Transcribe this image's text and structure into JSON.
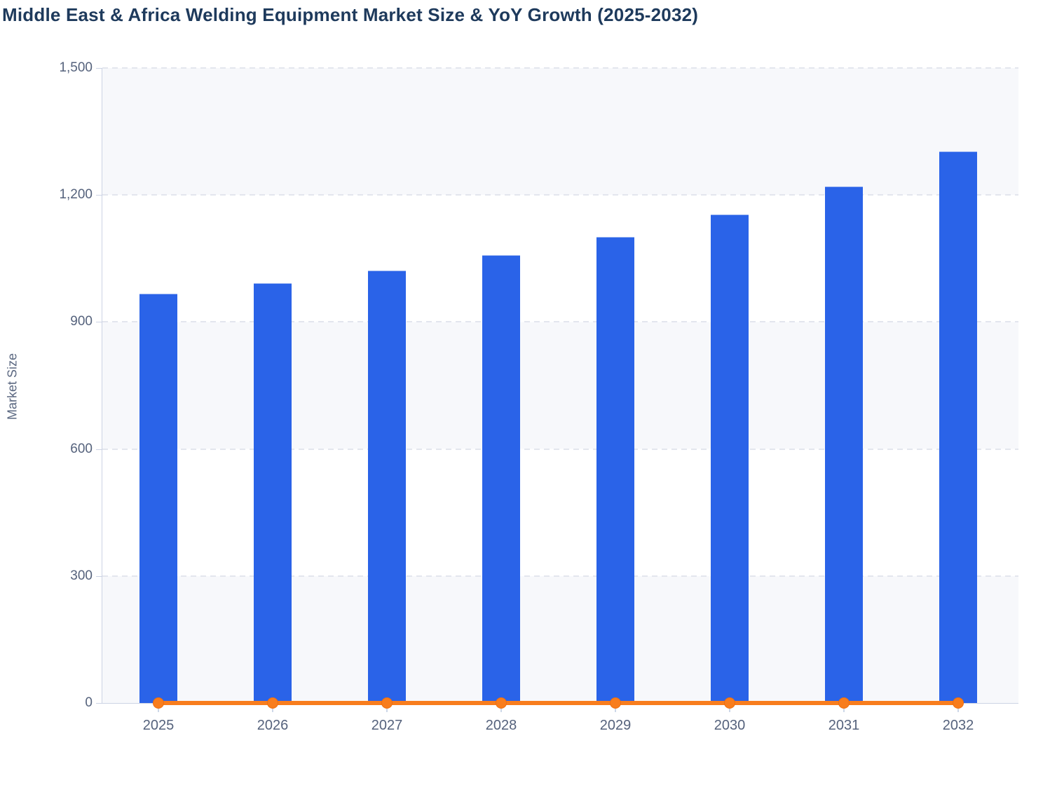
{
  "title": "Middle East & Africa Welding Equipment Market Size & YoY Growth (2025-2032)",
  "y_axis_title": "Market Size",
  "colors": {
    "bar": "#2a63e8",
    "line": "#f87d1d",
    "marker_border": "#ee6f10",
    "title_text": "#1e3a5c",
    "axis_text": "#55627c",
    "grid_dash": "#e3e6ee",
    "band_fill": "#f7f8fb",
    "axis_line": "#ccd3e4"
  },
  "chart_data": {
    "type": "bar",
    "title": "Middle East & Africa Welding Equipment Market Size & YoY Growth (2025-2032)",
    "xlabel": "",
    "ylabel": "Market Size",
    "categories": [
      "2025",
      "2026",
      "2027",
      "2028",
      "2029",
      "2030",
      "2031",
      "2032"
    ],
    "series": [
      {
        "name": "Market Size",
        "type": "bar",
        "values": [
          965,
          990,
          1020,
          1056,
          1100,
          1152,
          1219,
          1301
        ]
      },
      {
        "name": "YoY Growth",
        "type": "line",
        "values_on_left_axis": [
          0,
          0,
          0,
          0,
          0,
          0,
          0,
          0
        ],
        "note": "line with circular markers rendered flat along the zero baseline"
      }
    ],
    "ylim": [
      0,
      1500
    ],
    "yticks": [
      0,
      300,
      600,
      900,
      1200,
      1500
    ],
    "ytick_labels": [
      "0",
      "300",
      "600",
      "900",
      "1,200",
      "1,500"
    ],
    "grid": "horizontal dashed lines at each y tick",
    "plot_bands": "alternating horizontal bands (light gray / white) between gridlines",
    "legend": "none"
  }
}
